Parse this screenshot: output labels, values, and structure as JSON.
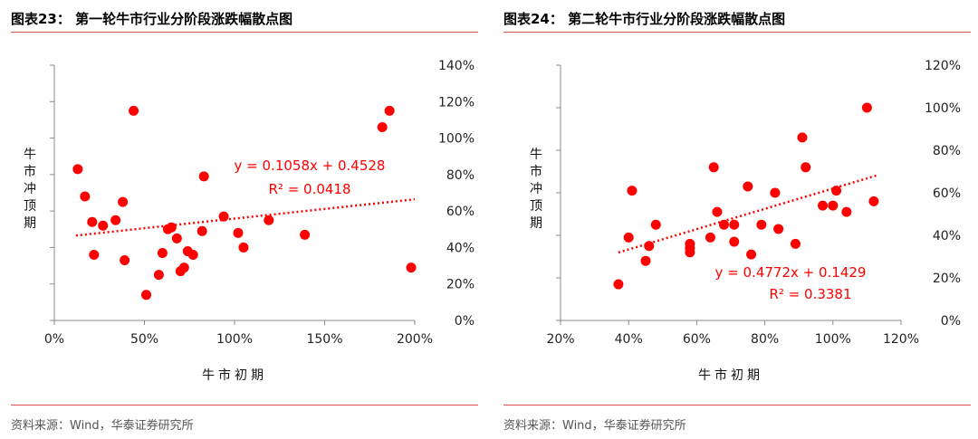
{
  "chart_data": [
    {
      "type": "scatter",
      "title": "图表23： 第一轮牛市行业分阶段涨跌幅散点图",
      "source": "资料来源：Wind，华泰证券研究所",
      "xlabel": "牛市初期",
      "ylabel": "牛市冲顶期",
      "xlim": [
        0,
        2.0
      ],
      "ylim": [
        0,
        1.4
      ],
      "xticks": [
        "0%",
        "50%",
        "100%",
        "150%",
        "200%"
      ],
      "yticks": [
        "0%",
        "20%",
        "40%",
        "60%",
        "80%",
        "100%",
        "120%",
        "140%"
      ],
      "y_axis_side": "right",
      "grid": false,
      "marker_color": "#ff0000",
      "trendline": {
        "slope": 0.1058,
        "intercept": 0.4528,
        "x_range": [
          0.12,
          2.0
        ]
      },
      "equation": "y = 0.1058x + 0.4528",
      "r2": "R² = 0.0418",
      "points": [
        {
          "x": 0.13,
          "y": 0.83
        },
        {
          "x": 0.17,
          "y": 0.68
        },
        {
          "x": 0.21,
          "y": 0.54
        },
        {
          "x": 0.22,
          "y": 0.36
        },
        {
          "x": 0.27,
          "y": 0.52
        },
        {
          "x": 0.34,
          "y": 0.55
        },
        {
          "x": 0.38,
          "y": 0.65
        },
        {
          "x": 0.39,
          "y": 0.33
        },
        {
          "x": 0.44,
          "y": 1.15
        },
        {
          "x": 0.51,
          "y": 0.14
        },
        {
          "x": 0.58,
          "y": 0.25
        },
        {
          "x": 0.6,
          "y": 0.37
        },
        {
          "x": 0.63,
          "y": 0.5
        },
        {
          "x": 0.65,
          "y": 0.51
        },
        {
          "x": 0.68,
          "y": 0.45
        },
        {
          "x": 0.7,
          "y": 0.27
        },
        {
          "x": 0.72,
          "y": 0.29
        },
        {
          "x": 0.74,
          "y": 0.38
        },
        {
          "x": 0.77,
          "y": 0.36
        },
        {
          "x": 0.82,
          "y": 0.49
        },
        {
          "x": 0.83,
          "y": 0.79
        },
        {
          "x": 0.94,
          "y": 0.57
        },
        {
          "x": 1.02,
          "y": 0.48
        },
        {
          "x": 1.05,
          "y": 0.4
        },
        {
          "x": 1.19,
          "y": 0.55
        },
        {
          "x": 1.39,
          "y": 0.47
        },
        {
          "x": 1.82,
          "y": 1.06
        },
        {
          "x": 1.86,
          "y": 1.15
        },
        {
          "x": 1.98,
          "y": 0.29
        }
      ]
    },
    {
      "type": "scatter",
      "title": "图表24： 第二轮牛市行业分阶段涨跌幅散点图",
      "source": "资料来源：Wind，华泰证券研究所",
      "xlabel": "牛市初期",
      "ylabel": "牛市冲顶期",
      "xlim": [
        0.2,
        1.2
      ],
      "ylim": [
        0,
        1.2
      ],
      "xticks": [
        "20%",
        "40%",
        "60%",
        "80%",
        "100%",
        "120%"
      ],
      "yticks": [
        "0%",
        "20%",
        "40%",
        "60%",
        "80%",
        "100%",
        "120%"
      ],
      "y_axis_side": "right",
      "grid": false,
      "marker_color": "#ff0000",
      "trendline": {
        "slope": 0.4772,
        "intercept": 0.1429,
        "x_range": [
          0.37,
          1.13
        ]
      },
      "equation": "y = 0.4772x + 0.1429",
      "r2": "R² = 0.3381",
      "points": [
        {
          "x": 0.37,
          "y": 0.17
        },
        {
          "x": 0.4,
          "y": 0.39
        },
        {
          "x": 0.41,
          "y": 0.61
        },
        {
          "x": 0.45,
          "y": 0.28
        },
        {
          "x": 0.46,
          "y": 0.35
        },
        {
          "x": 0.48,
          "y": 0.45
        },
        {
          "x": 0.58,
          "y": 0.34
        },
        {
          "x": 0.58,
          "y": 0.36
        },
        {
          "x": 0.58,
          "y": 0.32
        },
        {
          "x": 0.64,
          "y": 0.39
        },
        {
          "x": 0.65,
          "y": 0.72
        },
        {
          "x": 0.66,
          "y": 0.51
        },
        {
          "x": 0.68,
          "y": 0.45
        },
        {
          "x": 0.71,
          "y": 0.45
        },
        {
          "x": 0.71,
          "y": 0.37
        },
        {
          "x": 0.75,
          "y": 0.63
        },
        {
          "x": 0.76,
          "y": 0.31
        },
        {
          "x": 0.79,
          "y": 0.45
        },
        {
          "x": 0.83,
          "y": 0.6
        },
        {
          "x": 0.84,
          "y": 0.43
        },
        {
          "x": 0.89,
          "y": 0.36
        },
        {
          "x": 0.91,
          "y": 0.86
        },
        {
          "x": 0.92,
          "y": 0.72
        },
        {
          "x": 0.97,
          "y": 0.54
        },
        {
          "x": 1.0,
          "y": 0.54
        },
        {
          "x": 1.01,
          "y": 0.61
        },
        {
          "x": 1.04,
          "y": 0.51
        },
        {
          "x": 1.1,
          "y": 1.0
        },
        {
          "x": 1.12,
          "y": 0.56
        }
      ]
    }
  ]
}
